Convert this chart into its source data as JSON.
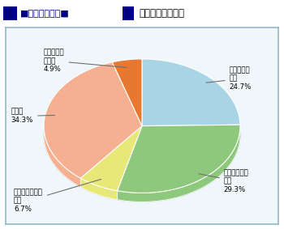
{
  "title_prefix": "■図３－３－８■",
  "title_main": "避難誘導する自信",
  "slices": [
    {
      "label_l1": "まあ自信が",
      "label_l2": "ある",
      "label_l3": "24.7%",
      "value": 24.7,
      "color": "#a8d4e6"
    },
    {
      "label_l1": "あまり自信が",
      "label_l2": "ない",
      "label_l3": "29.3%",
      "value": 29.3,
      "color": "#8dc87c"
    },
    {
      "label_l1": "まったく自信が",
      "label_l2": "ない",
      "label_l3": "6.7%",
      "value": 6.7,
      "color": "#e8e878"
    },
    {
      "label_l1": "無回答",
      "label_l2": "34.3%",
      "label_l3": "",
      "value": 34.3,
      "color": "#f4b090"
    },
    {
      "label_l1": "かなり自信",
      "label_l2": "がある",
      "label_l3": "4.9%",
      "value": 4.9,
      "color": "#e87830"
    }
  ],
  "bg_color": "#ffffff",
  "box_edge_color": "#90b8cc",
  "box_fill_color": "#f0f7fa",
  "title_color": "#000080",
  "shadow_color": "#c0c0c0",
  "edge_color": "#ffffff"
}
